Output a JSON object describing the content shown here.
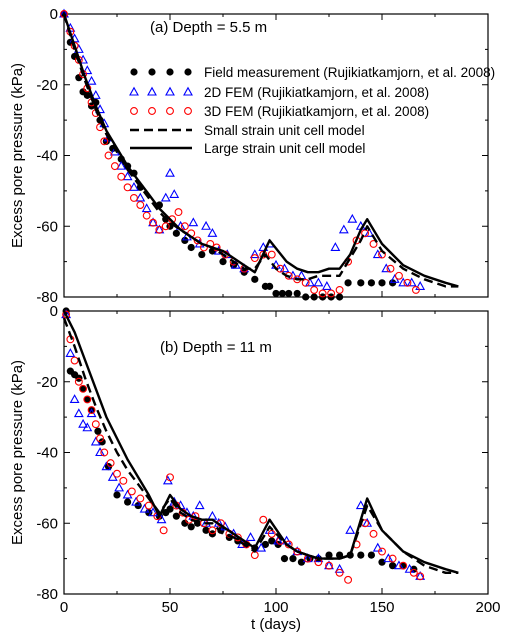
{
  "chart_data": [
    {
      "type": "scatter",
      "title": "(a) Depth = 5.5 m",
      "xlabel": "",
      "ylabel": "Excess pore pressure (kPa)",
      "xlim": [
        0,
        200
      ],
      "ylim": [
        -80,
        0
      ],
      "xticks": [
        0,
        50,
        100,
        150,
        200
      ],
      "yticks": [
        0,
        -20,
        -40,
        -60,
        -80
      ],
      "show_x_ticklabels": false,
      "grid": false,
      "legend_position": "top-right",
      "series": [
        {
          "name": "Field measurement (Rujikiatkamjorn, et al. 2008)",
          "marker": "filled-circle",
          "color": "#000000",
          "x": [
            0,
            3,
            5,
            7,
            9,
            11,
            13,
            15,
            17,
            20,
            23,
            27,
            30,
            33,
            36,
            45,
            48,
            50,
            53,
            57,
            60,
            65,
            70,
            75,
            80,
            85,
            90,
            95,
            97,
            100,
            103,
            106,
            110,
            114,
            118,
            122,
            126,
            130,
            134,
            140,
            145,
            150,
            155
          ],
          "y": [
            0,
            -8,
            -12,
            -18,
            -22,
            -23,
            -26,
            -25,
            -30,
            -36,
            -38,
            -41,
            -43,
            -45,
            -49,
            -54,
            -58,
            -60,
            -62,
            -64,
            -66,
            -68,
            -67,
            -70,
            -71,
            -73,
            -75,
            -77,
            -77,
            -79,
            -79,
            -79,
            -79,
            -80,
            -80,
            -80,
            -80,
            -80,
            -76,
            -76,
            -76,
            -76,
            -76
          ]
        },
        {
          "name": "2D FEM (Rujikiatkamjorn, et al. 2008)",
          "marker": "open-triangle",
          "color": "#0000ff",
          "x": [
            0,
            3,
            5,
            7,
            9,
            11,
            13,
            15,
            17,
            19,
            21,
            24,
            27,
            30,
            33,
            36,
            39,
            42,
            45,
            48,
            50,
            52,
            55,
            58,
            61,
            64,
            67,
            70,
            73,
            77,
            81,
            85,
            90,
            94,
            97,
            100,
            104,
            108,
            112,
            116,
            120,
            124,
            128,
            132,
            136,
            140,
            144,
            148,
            152,
            156,
            160,
            164,
            168
          ],
          "y": [
            0,
            -4,
            -7,
            -10,
            -13,
            -16,
            -19,
            -23,
            -27,
            -31,
            -35,
            -39,
            -43,
            -46,
            -49,
            -52,
            -55,
            -59,
            -61,
            -52,
            -45,
            -51,
            -60,
            -63,
            -59,
            -65,
            -60,
            -62,
            -67,
            -68,
            -71,
            -72,
            -68,
            -66,
            -65,
            -71,
            -72,
            -74,
            -74,
            -76,
            -76,
            -77,
            -66,
            -61,
            -58,
            -60,
            -62,
            -68,
            -72,
            -75,
            -76,
            -76,
            -77
          ]
        },
        {
          "name": "3D FEM (Rujikiatkamjorn, et al. 2008)",
          "marker": "open-circle",
          "color": "#ff0000",
          "x": [
            0,
            3,
            5,
            7,
            9,
            11,
            13,
            15,
            17,
            19,
            21,
            24,
            27,
            30,
            33,
            36,
            39,
            42,
            45,
            48,
            51,
            54,
            57,
            60,
            63,
            66,
            69,
            72,
            76,
            80,
            85,
            90,
            94,
            98,
            102,
            106,
            110,
            114,
            118,
            122,
            126,
            130,
            134,
            138,
            142,
            146,
            150,
            154,
            158,
            162,
            166
          ],
          "y": [
            0,
            -5,
            -9,
            -13,
            -17,
            -21,
            -25,
            -28,
            -32,
            -36,
            -40,
            -43,
            -46,
            -49,
            -52,
            -54,
            -57,
            -59,
            -61,
            -60,
            -58,
            -56,
            -60,
            -62,
            -64,
            -66,
            -65,
            -66,
            -68,
            -70,
            -72,
            -69,
            -68,
            -68,
            -72,
            -74,
            -75,
            -76,
            -78,
            -79,
            -79,
            -78,
            -70,
            -64,
            -62,
            -65,
            -68,
            -72,
            -74,
            -76,
            -78
          ]
        },
        {
          "name": "Small strain unit cell model",
          "marker": "dashed-line",
          "color": "#000000",
          "x": [
            0,
            5,
            10,
            15,
            20,
            25,
            30,
            35,
            40,
            45,
            50,
            55,
            60,
            65,
            70,
            75,
            80,
            85,
            90,
            95,
            100,
            105,
            110,
            115,
            120,
            125,
            130,
            135,
            140,
            143,
            150,
            160,
            170,
            180,
            186
          ],
          "y": [
            0,
            -10,
            -19,
            -27,
            -34,
            -39,
            -44,
            -48,
            -52,
            -56,
            -59,
            -61,
            -63,
            -65,
            -66,
            -68,
            -70,
            -72,
            -72,
            -68,
            -72,
            -74,
            -75,
            -75,
            -74,
            -74,
            -74,
            -69,
            -64,
            -60,
            -67,
            -72,
            -75,
            -77,
            -77
          ]
        },
        {
          "name": "Large strain unit cell model",
          "marker": "solid-line",
          "color": "#000000",
          "x": [
            0,
            5,
            10,
            15,
            20,
            25,
            30,
            35,
            40,
            45,
            50,
            55,
            60,
            65,
            70,
            75,
            80,
            85,
            90,
            97,
            105,
            110,
            115,
            120,
            125,
            130,
            135,
            140,
            143,
            150,
            160,
            170,
            180,
            186
          ],
          "y": [
            0,
            -9,
            -18,
            -26,
            -33,
            -38,
            -43,
            -47,
            -51,
            -55,
            -58,
            -61,
            -63,
            -65,
            -66,
            -67,
            -69,
            -71,
            -73,
            -64,
            -70,
            -72,
            -73,
            -73,
            -72,
            -72,
            -68,
            -61,
            -58,
            -65,
            -71,
            -74,
            -76,
            -77
          ]
        }
      ]
    },
    {
      "type": "scatter",
      "title": "(b) Depth = 11 m",
      "xlabel": "t (days)",
      "ylabel": "Excess pore pressure (kPa)",
      "xlim": [
        0,
        200
      ],
      "ylim": [
        -80,
        0
      ],
      "xticks": [
        0,
        50,
        100,
        150,
        200
      ],
      "yticks": [
        0,
        -20,
        -40,
        -60,
        -80
      ],
      "show_x_ticklabels": true,
      "grid": false,
      "series": [
        {
          "name": "Field measurement (Rujikiatkamjorn, et al. 2008)",
          "marker": "filled-circle",
          "color": "#000000",
          "x": [
            1,
            3,
            5,
            7,
            9,
            11,
            13,
            16,
            18,
            21,
            25,
            30,
            35,
            40,
            45,
            48,
            50,
            53,
            57,
            60,
            63,
            67,
            70,
            74,
            78,
            82,
            86,
            90,
            95,
            98,
            101,
            104,
            108,
            112,
            116,
            120,
            125,
            130,
            135,
            140,
            145,
            150,
            155,
            160,
            165
          ],
          "y": [
            0,
            -17,
            -18,
            -19,
            -22,
            -25,
            -28,
            -34,
            -37,
            -44,
            -52,
            -54,
            -55,
            -57,
            -58,
            -57,
            -56,
            -58,
            -60,
            -61,
            -60,
            -62,
            -63,
            -62,
            -64,
            -65,
            -66,
            -67,
            -66,
            -65,
            -66,
            -70,
            -70,
            -71,
            -70,
            -70,
            -69,
            -69,
            -69,
            -69,
            -69,
            -71,
            -72,
            -72,
            -73
          ]
        },
        {
          "name": "2D FEM (Rujikiatkamjorn, et al. 2008)",
          "marker": "open-triangle",
          "color": "#0000ff",
          "x": [
            1,
            3,
            5,
            7,
            9,
            11,
            13,
            15,
            17,
            20,
            23,
            26,
            30,
            34,
            38,
            42,
            46,
            49,
            52,
            55,
            58,
            61,
            64,
            67,
            70,
            73,
            76,
            80,
            84,
            88,
            93,
            97,
            101,
            105,
            110,
            115,
            120,
            125,
            130,
            135,
            140,
            143,
            148,
            153,
            158,
            163,
            168
          ],
          "y": [
            -1,
            -12,
            -25,
            -29,
            -32,
            -33,
            -29,
            -37,
            -40,
            -44,
            -47,
            -50,
            -52,
            -54,
            -56,
            -57,
            -59,
            -48,
            -54,
            -55,
            -57,
            -58,
            -55,
            -60,
            -58,
            -60,
            -61,
            -63,
            -66,
            -64,
            -67,
            -62,
            -65,
            -65,
            -68,
            -70,
            -70,
            -72,
            -73,
            -62,
            -55,
            -60,
            -67,
            -70,
            -72,
            -73,
            -75
          ]
        },
        {
          "name": "3D FEM (Rujikiatkamjorn, et al. 2008)",
          "marker": "open-circle",
          "color": "#ff0000",
          "x": [
            1,
            3,
            5,
            7,
            9,
            11,
            13,
            15,
            17,
            19,
            22,
            25,
            28,
            32,
            36,
            40,
            44,
            47,
            50,
            53,
            56,
            59,
            62,
            66,
            70,
            74,
            78,
            82,
            86,
            90,
            94,
            98,
            102,
            106,
            110,
            115,
            120,
            125,
            130,
            134,
            138,
            142,
            146,
            150,
            155,
            160,
            165,
            168
          ],
          "y": [
            -1,
            -8,
            -14,
            -20,
            -22,
            -25,
            -28,
            -32,
            -36,
            -40,
            -43,
            -46,
            -48,
            -51,
            -53,
            -55,
            -58,
            -62,
            -47,
            -55,
            -57,
            -59,
            -58,
            -60,
            -62,
            -60,
            -63,
            -64,
            -66,
            -69,
            -59,
            -63,
            -65,
            -66,
            -68,
            -70,
            -71,
            -72,
            -74,
            -76,
            -66,
            -60,
            -63,
            -68,
            -70,
            -72,
            -74,
            -75
          ]
        },
        {
          "name": "Small strain unit cell model",
          "marker": "dashed-line",
          "color": "#000000",
          "x": [
            0,
            5,
            10,
            15,
            20,
            25,
            30,
            35,
            40,
            45,
            50,
            55,
            60,
            65,
            70,
            75,
            80,
            85,
            90,
            97,
            105,
            110,
            115,
            120,
            125,
            130,
            135,
            143,
            150,
            160,
            170,
            180,
            186
          ],
          "y": [
            -2,
            -10,
            -19,
            -27,
            -34,
            -40,
            -45,
            -49,
            -53,
            -57,
            -53,
            -57,
            -59,
            -60,
            -60,
            -63,
            -64,
            -66,
            -68,
            -61,
            -66,
            -68,
            -69,
            -70,
            -70,
            -70,
            -69,
            -55,
            -62,
            -68,
            -72,
            -74,
            -74
          ]
        },
        {
          "name": "Large strain unit cell model",
          "marker": "solid-line",
          "color": "#000000",
          "x": [
            0,
            5,
            10,
            15,
            20,
            25,
            30,
            35,
            40,
            45,
            50,
            55,
            60,
            65,
            70,
            75,
            80,
            85,
            90,
            97,
            105,
            110,
            115,
            120,
            125,
            130,
            135,
            143,
            150,
            160,
            170,
            180,
            186
          ],
          "y": [
            0,
            -6,
            -14,
            -22,
            -30,
            -36,
            -42,
            -47,
            -52,
            -58,
            -52,
            -56,
            -58,
            -59,
            -59,
            -61,
            -63,
            -65,
            -67,
            -59,
            -66,
            -68,
            -69,
            -70,
            -70,
            -70,
            -69,
            -53,
            -62,
            -68,
            -71,
            -73,
            -74
          ]
        }
      ]
    }
  ]
}
